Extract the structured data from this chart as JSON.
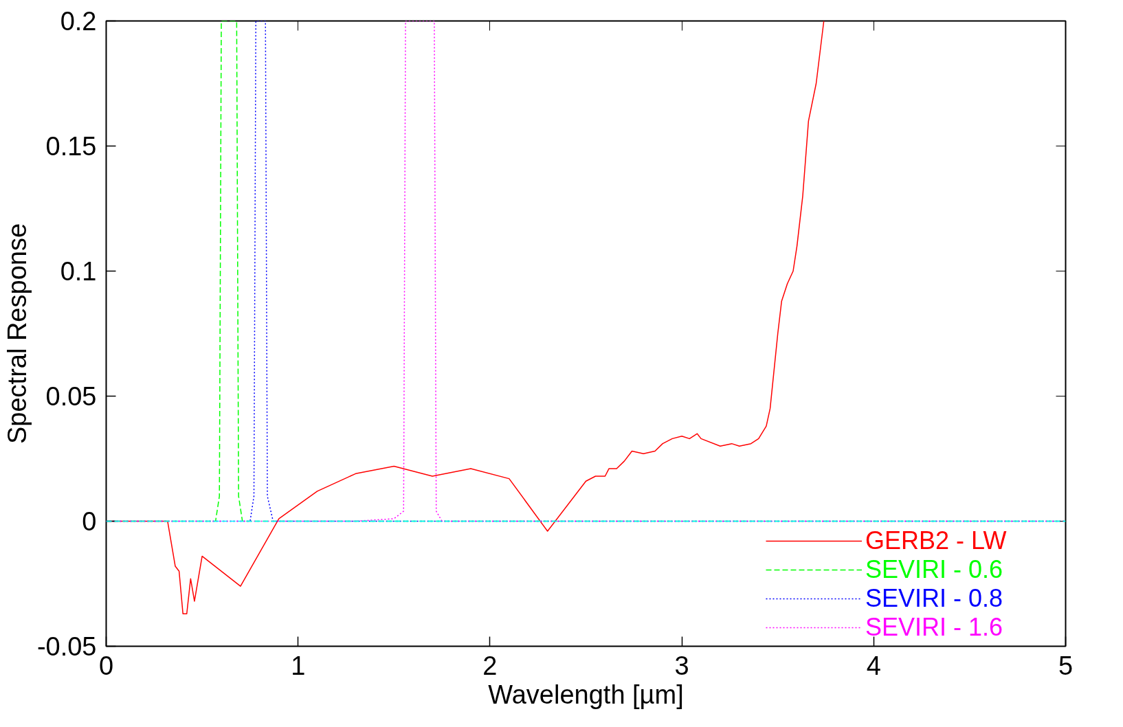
{
  "chart_data": {
    "type": "line",
    "xlabel": "Wavelength [µm]",
    "ylabel": "Spectral Response",
    "xlim": [
      0,
      5
    ],
    "ylim": [
      -0.05,
      0.2
    ],
    "xticks": [
      0,
      1,
      2,
      3,
      4,
      5
    ],
    "yticks": [
      -0.05,
      0,
      0.05,
      0.1,
      0.15,
      0.2
    ],
    "grid": false,
    "legend": "bottom right",
    "ref_lines": [
      {
        "axis": "y",
        "value": 0,
        "color": "#00ffff",
        "line_style": "dashed"
      }
    ],
    "series": [
      {
        "name": "GERB2 - LW",
        "color": "#ff0000",
        "line_style": "solid",
        "x": [
          0,
          0.32,
          0.36,
          0.38,
          0.4,
          0.42,
          0.44,
          0.46,
          0.5,
          0.7,
          0.9,
          1.1,
          1.3,
          1.5,
          1.7,
          1.9,
          2.1,
          2.3,
          2.5,
          2.55,
          2.6,
          2.62,
          2.66,
          2.7,
          2.74,
          2.8,
          2.86,
          2.9,
          2.95,
          3.0,
          3.04,
          3.08,
          3.1,
          3.2,
          3.26,
          3.3,
          3.36,
          3.4,
          3.44,
          3.46,
          3.5,
          3.52,
          3.55,
          3.58,
          3.6,
          3.63,
          3.66,
          3.7,
          3.74
        ],
        "values": [
          0,
          0,
          -0.018,
          -0.02,
          -0.037,
          -0.037,
          -0.023,
          -0.032,
          -0.014,
          -0.026,
          0.001,
          0.012,
          0.019,
          0.022,
          0.018,
          0.021,
          0.017,
          -0.004,
          0.016,
          0.018,
          0.018,
          0.021,
          0.021,
          0.024,
          0.028,
          0.027,
          0.028,
          0.031,
          0.033,
          0.034,
          0.033,
          0.035,
          0.033,
          0.03,
          0.031,
          0.03,
          0.031,
          0.033,
          0.038,
          0.045,
          0.075,
          0.088,
          0.095,
          0.1,
          0.11,
          0.13,
          0.16,
          0.175,
          0.2
        ]
      },
      {
        "name": "SEVIRI - 0.6",
        "color": "#00ff00",
        "line_style": "dashed",
        "x": [
          0,
          0.57,
          0.59,
          0.6,
          0.68,
          0.69,
          0.71,
          5
        ],
        "values": [
          0,
          0,
          0.01,
          0.2,
          0.2,
          0.01,
          0,
          0
        ]
      },
      {
        "name": "SEVIRI - 0.8",
        "color": "#0000ff",
        "line_style": "dotted",
        "x": [
          0,
          0.75,
          0.77,
          0.78,
          0.83,
          0.84,
          0.87,
          5
        ],
        "values": [
          0,
          0,
          0.01,
          0.2,
          0.2,
          0.01,
          0,
          0
        ]
      },
      {
        "name": "SEVIRI - 1.6",
        "color": "#ff00ff",
        "line_style": "dotted",
        "x": [
          0,
          1.3,
          1.5,
          1.55,
          1.56,
          1.71,
          1.72,
          1.75,
          1.9,
          5
        ],
        "values": [
          0,
          0,
          0.001,
          0.004,
          0.2,
          0.2,
          0.004,
          0,
          0,
          0
        ]
      }
    ]
  }
}
